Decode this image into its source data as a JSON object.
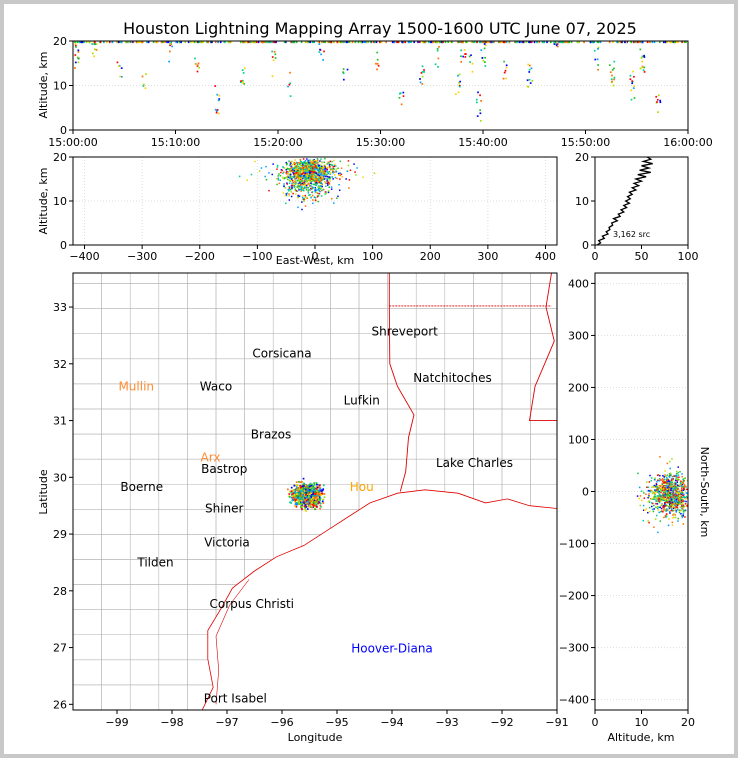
{
  "title": "Houston Lightning Mapping Array 1500-1600 UTC June 07, 2025",
  "colors": {
    "state_border": "#e00000",
    "county_border": "#b4b4b4",
    "histogram": "#000000",
    "orange_label": "#ff8c32",
    "green_label": "#7cd62a",
    "blue_label": "#0000ff"
  },
  "chart_data": [
    {
      "id": "time-altitude",
      "type": "scatter",
      "xlabel": "",
      "ylabel": "Altitude, km",
      "xlim": [
        "15:00:00",
        "16:00:00"
      ],
      "ylim": [
        0,
        20
      ],
      "x_ticks": [
        "15:00:00",
        "15:10:00",
        "15:20:00",
        "15:30:00",
        "15:40:00",
        "15:50:00",
        "16:00:00"
      ],
      "y_ticks": [
        "0",
        "10",
        "20"
      ],
      "activity_minutes": [
        [
          0.3,
          17
        ],
        [
          2.0,
          19
        ],
        [
          4.5,
          14
        ],
        [
          6.8,
          11
        ],
        [
          9.5,
          19
        ],
        [
          12.0,
          15
        ],
        [
          14.0,
          7
        ],
        [
          16.5,
          12
        ],
        [
          19.5,
          16
        ],
        [
          21.0,
          10
        ],
        [
          24.2,
          18
        ],
        [
          26.5,
          13
        ],
        [
          29.5,
          15
        ],
        [
          32.0,
          9
        ],
        [
          34.0,
          12
        ],
        [
          35.5,
          17
        ],
        [
          37.5,
          10
        ],
        [
          38.0,
          18
        ],
        [
          38.8,
          14
        ],
        [
          39.5,
          6
        ],
        [
          40.0,
          17
        ],
        [
          42.0,
          14
        ],
        [
          44.5,
          12
        ],
        [
          47.0,
          19
        ],
        [
          51.0,
          16
        ],
        [
          52.5,
          12
        ],
        [
          54.5,
          10
        ],
        [
          55.5,
          15
        ],
        [
          57.0,
          6
        ]
      ]
    },
    {
      "id": "east-west-altitude",
      "type": "scatter",
      "xlabel": "East-West, km",
      "ylabel": "Altitude, km",
      "xlim": [
        -420,
        420
      ],
      "ylim": [
        0,
        20
      ],
      "x_ticks": [
        "−400",
        "−300",
        "−200",
        "−100",
        "0",
        "100",
        "200",
        "300",
        "400"
      ],
      "y_ticks": [
        "0",
        "10",
        "20"
      ],
      "cluster_center_x": -10,
      "cluster_spread_x": 38
    },
    {
      "id": "altitude-histogram",
      "type": "line",
      "xlim": [
        0,
        100
      ],
      "ylim": [
        0,
        20
      ],
      "x_ticks": [
        "0",
        "50",
        "100"
      ],
      "y_ticks": [
        "0",
        "10",
        "20"
      ],
      "annotation": "3,162 src",
      "profile": [
        [
          0,
          2
        ],
        [
          0.5,
          6
        ],
        [
          1,
          4
        ],
        [
          1.5,
          10
        ],
        [
          2,
          8
        ],
        [
          2.5,
          14
        ],
        [
          3,
          12
        ],
        [
          3.5,
          16
        ],
        [
          4,
          15
        ],
        [
          4.5,
          19
        ],
        [
          5,
          18
        ],
        [
          5.5,
          24
        ],
        [
          6,
          20
        ],
        [
          6.5,
          27
        ],
        [
          7,
          25
        ],
        [
          7.5,
          31
        ],
        [
          8,
          28
        ],
        [
          8.5,
          34
        ],
        [
          9,
          31
        ],
        [
          9.5,
          37
        ],
        [
          10,
          33
        ],
        [
          10.5,
          38
        ],
        [
          11,
          35
        ],
        [
          11.5,
          40
        ],
        [
          12,
          37
        ],
        [
          12.5,
          44
        ],
        [
          13,
          40
        ],
        [
          13.5,
          47
        ],
        [
          14,
          42
        ],
        [
          14.5,
          50
        ],
        [
          15,
          44
        ],
        [
          15.5,
          55
        ],
        [
          16,
          46
        ],
        [
          16.5,
          60
        ],
        [
          17,
          48
        ],
        [
          17.5,
          58
        ],
        [
          18,
          50
        ],
        [
          18.5,
          62
        ],
        [
          19,
          52
        ],
        [
          19.5,
          60
        ],
        [
          20,
          56
        ]
      ]
    },
    {
      "id": "plan-view-map",
      "type": "scatter",
      "xlabel": "Longitude",
      "ylabel": "Latitude",
      "xlim": [
        -99.8,
        -91
      ],
      "ylim": [
        25.9,
        33.6
      ],
      "x_ticks": [
        "−99",
        "−98",
        "−97",
        "−96",
        "−95",
        "−94",
        "−93",
        "−92",
        "−91"
      ],
      "y_ticks": [
        "26",
        "27",
        "28",
        "29",
        "30",
        "31",
        "32",
        "33"
      ],
      "cluster_center": [
        -95.55,
        29.7
      ],
      "cities": [
        {
          "name": "Shreveport",
          "lon": -93.77,
          "lat": 32.57,
          "color": "#000000"
        },
        {
          "name": "Corsicana",
          "lon": -96.0,
          "lat": 32.18,
          "color": "#000000"
        },
        {
          "name": "Natchitoches",
          "lon": -92.9,
          "lat": 31.75,
          "color": "#000000"
        },
        {
          "name": "Mullin",
          "lon": -98.65,
          "lat": 31.6,
          "color": "#ff8c32"
        },
        {
          "name": "Waco",
          "lon": -97.2,
          "lat": 31.6,
          "color": "#000000"
        },
        {
          "name": "Lufkin",
          "lon": -94.55,
          "lat": 31.35,
          "color": "#000000"
        },
        {
          "name": "Brazos",
          "lon": -96.2,
          "lat": 30.75,
          "color": "#000000"
        },
        {
          "name": "Arx",
          "lon": -97.3,
          "lat": 30.35,
          "color": "#ff8c32"
        },
        {
          "name": "Bastrop",
          "lon": -97.05,
          "lat": 30.15,
          "color": "#000000"
        },
        {
          "name": "Lake Charles",
          "lon": -92.5,
          "lat": 30.25,
          "color": "#000000"
        },
        {
          "name": "Boerne",
          "lon": -98.55,
          "lat": 29.83,
          "color": "#000000"
        },
        {
          "name": "Hou",
          "lon": -94.55,
          "lat": 29.83,
          "color": "#ffa500"
        },
        {
          "name": "Shiner",
          "lon": -97.05,
          "lat": 29.45,
          "color": "#000000"
        },
        {
          "name": "Victoria",
          "lon": -97.0,
          "lat": 28.85,
          "color": "#000000"
        },
        {
          "name": "Tilden",
          "lon": -98.3,
          "lat": 28.5,
          "color": "#000000"
        },
        {
          "name": "Corpus Christi",
          "lon": -96.55,
          "lat": 27.77,
          "color": "#000000"
        },
        {
          "name": "Hoover-Diana",
          "lon": -94.0,
          "lat": 26.98,
          "color": "#0000ff"
        },
        {
          "name": "Port Isabel",
          "lon": -96.85,
          "lat": 26.1,
          "color": "#000000"
        }
      ]
    },
    {
      "id": "altitude-north-south",
      "type": "scatter",
      "xlabel": "Altitude, km",
      "ylabel": "North-South, km",
      "xlim": [
        0,
        20
      ],
      "ylim": [
        -420,
        420
      ],
      "x_ticks": [
        "0",
        "10",
        "20"
      ],
      "y_ticks": [
        "−400",
        "−300",
        "−200",
        "−100",
        "0",
        "100",
        "200",
        "300",
        "400"
      ],
      "cluster_center_y": -5,
      "cluster_spread_y": 35
    }
  ]
}
